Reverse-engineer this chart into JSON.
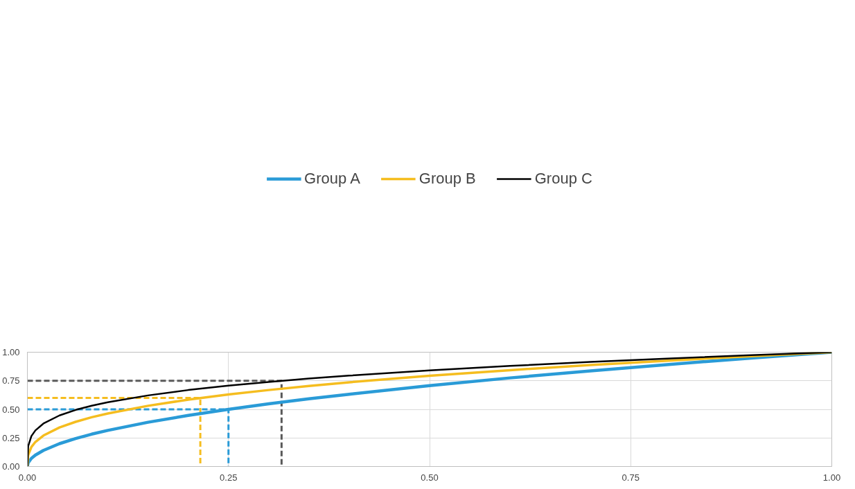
{
  "chart_data": {
    "type": "line",
    "xlim": [
      0,
      1
    ],
    "ylim": [
      0,
      1
    ],
    "xticks": [
      {
        "value": 0,
        "label": "0.00"
      },
      {
        "value": 0.25,
        "label": "0.25"
      },
      {
        "value": 0.5,
        "label": "0.50"
      },
      {
        "value": 0.75,
        "label": "0.75"
      },
      {
        "value": 1,
        "label": "1.00"
      }
    ],
    "yticks": [
      {
        "value": 0,
        "label": "0.00"
      },
      {
        "value": 0.25,
        "label": "0.25"
      },
      {
        "value": 0.5,
        "label": "0.50"
      },
      {
        "value": 0.75,
        "label": "0.75"
      },
      {
        "value": 1,
        "label": "1.00"
      }
    ],
    "grid": true,
    "legend": "top",
    "line_style": "solid",
    "series": [
      {
        "name": "Group A",
        "color": "#2a9bd7",
        "x": [
          0,
          0.001,
          0.005,
          0.01,
          0.02,
          0.04,
          0.06,
          0.08,
          0.1,
          0.15,
          0.2,
          0.25,
          0.3,
          0.35,
          0.4,
          0.5,
          0.6,
          0.7,
          0.8,
          0.9,
          1
        ],
        "values": [
          0,
          0.032,
          0.071,
          0.1,
          0.141,
          0.2,
          0.245,
          0.283,
          0.316,
          0.387,
          0.447,
          0.5,
          0.548,
          0.592,
          0.632,
          0.707,
          0.775,
          0.837,
          0.894,
          0.949,
          1
        ]
      },
      {
        "name": "Group B",
        "color": "#f5bd1f",
        "x": [
          0,
          0.001,
          0.005,
          0.01,
          0.02,
          0.04,
          0.06,
          0.08,
          0.1,
          0.15,
          0.2,
          0.25,
          0.3,
          0.35,
          0.4,
          0.5,
          0.6,
          0.7,
          0.8,
          0.9,
          1
        ],
        "values": [
          0,
          0.1,
          0.171,
          0.215,
          0.271,
          0.342,
          0.391,
          0.431,
          0.464,
          0.531,
          0.585,
          0.63,
          0.669,
          0.705,
          0.737,
          0.794,
          0.843,
          0.888,
          0.928,
          0.965,
          1
        ]
      },
      {
        "name": "Group C",
        "color": "#000000",
        "x": [
          0,
          0.001,
          0.005,
          0.01,
          0.02,
          0.04,
          0.06,
          0.08,
          0.1,
          0.15,
          0.2,
          0.25,
          0.3,
          0.35,
          0.4,
          0.5,
          0.6,
          0.7,
          0.8,
          0.9,
          1
        ],
        "values": [
          0,
          0.178,
          0.266,
          0.316,
          0.376,
          0.447,
          0.495,
          0.532,
          0.562,
          0.622,
          0.669,
          0.707,
          0.74,
          0.769,
          0.795,
          0.841,
          0.88,
          0.915,
          0.946,
          0.974,
          1
        ]
      },
      {
        "color": "#2a9bd7",
        "line_style": "dashed",
        "x": [
          0,
          0.25,
          0.25
        ],
        "values": [
          0.5,
          0.5,
          0
        ]
      },
      {
        "color": "#f5bd1f",
        "line_style": "dashed",
        "x": [
          0,
          0.215,
          0.215
        ],
        "values": [
          0.6,
          0.6,
          0
        ]
      },
      {
        "color": "#595959",
        "line_style": "dashed",
        "x": [
          0,
          0.316,
          0.316
        ],
        "values": [
          0.75,
          0.75,
          0
        ]
      }
    ]
  }
}
